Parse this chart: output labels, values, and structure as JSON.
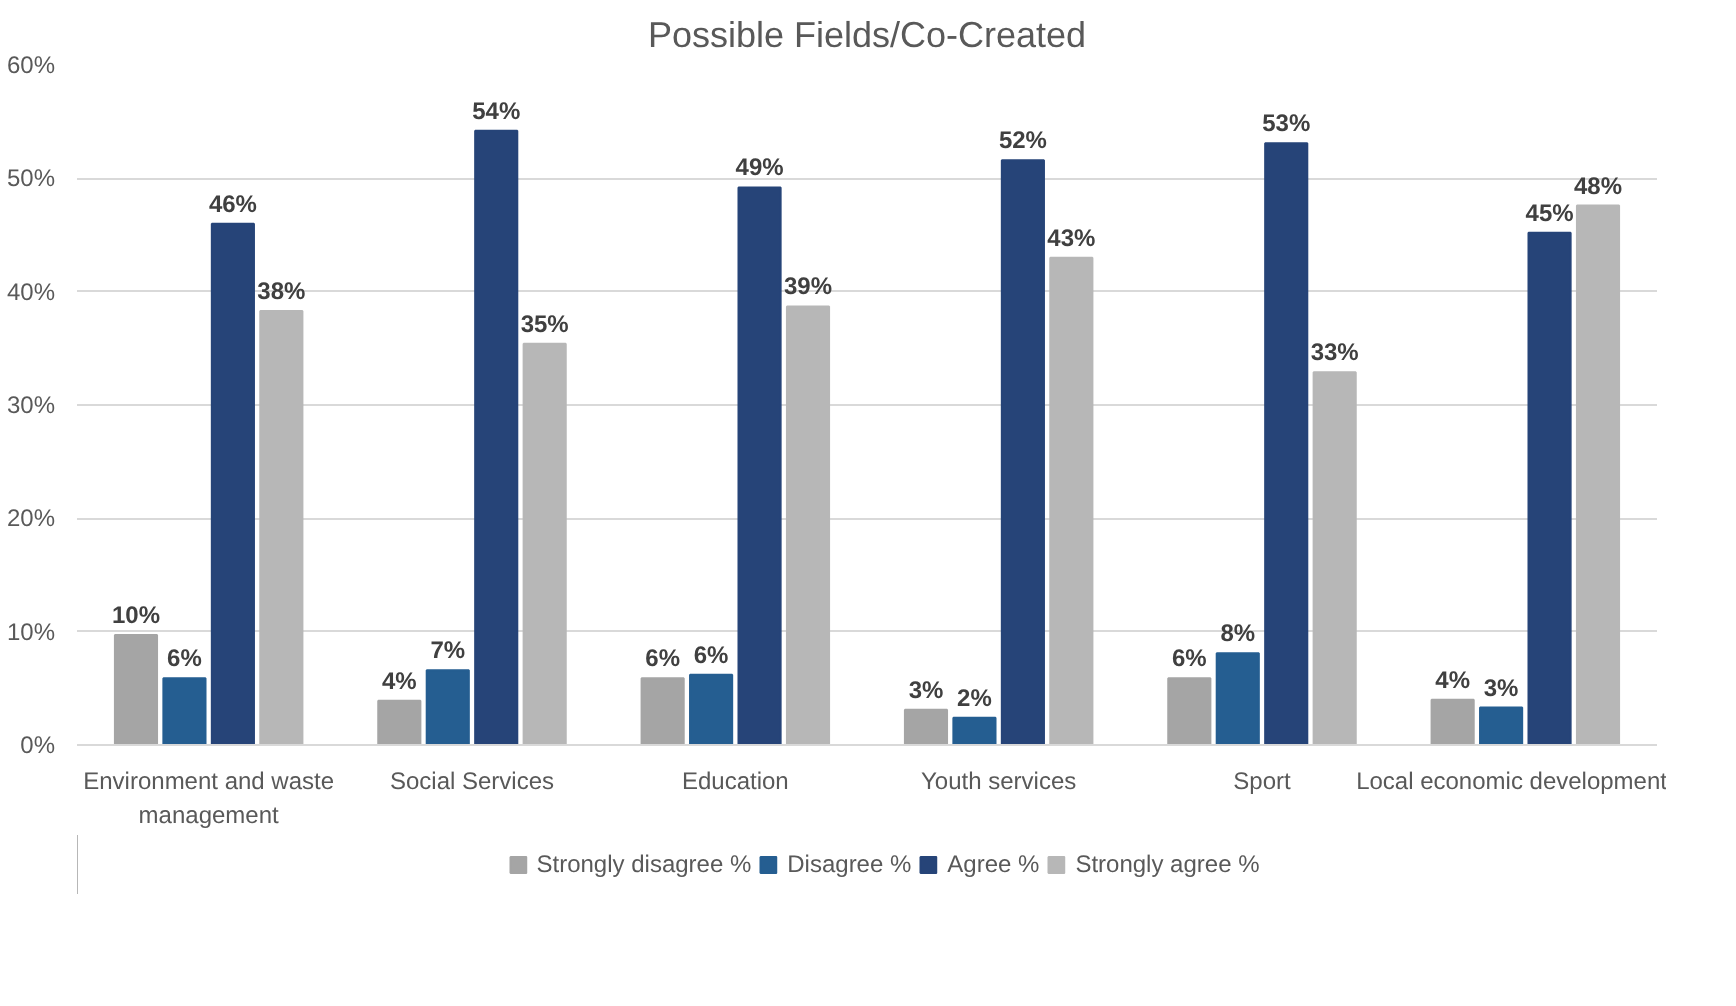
{
  "chart_data": {
    "type": "bar",
    "title": "Possible Fields/Co-Created",
    "categories": [
      "Environment and waste management",
      "Social Services",
      "Education",
      "Youth services",
      "Sport",
      "Local economic development"
    ],
    "series": [
      {
        "name": "Strongly disagree %",
        "color": "#a5a5a5",
        "values": [
          9.7,
          3.9,
          5.9,
          3.1,
          5.9,
          4.0
        ],
        "value_labels": [
          "10%",
          "4%",
          "6%",
          "3%",
          "6%",
          "4%"
        ]
      },
      {
        "name": "Disagree %",
        "color": "#255e91",
        "values": [
          5.9,
          6.6,
          6.2,
          2.4,
          8.1,
          3.3
        ],
        "value_labels": [
          "6%",
          "7%",
          "6%",
          "2%",
          "8%",
          "3%"
        ]
      },
      {
        "name": "Agree %",
        "color": "#264478",
        "values": [
          46,
          54.2,
          49.2,
          51.6,
          53.1,
          45.2
        ],
        "value_labels": [
          "46%",
          "54%",
          "49%",
          "52%",
          "53%",
          "45%"
        ]
      },
      {
        "name": "Strongly agree %",
        "color": "#b7b7b7",
        "values": [
          38.3,
          35.4,
          38.7,
          43.0,
          32.9,
          47.6
        ],
        "value_labels": [
          "38%",
          "35%",
          "39%",
          "43%",
          "33%",
          "48%"
        ]
      }
    ],
    "ylim": [
      0,
      60
    ],
    "yticks": [
      {
        "value": 0,
        "label": "0%"
      },
      {
        "value": 10,
        "label": "10%"
      },
      {
        "value": 20,
        "label": "20%"
      },
      {
        "value": 30,
        "label": "30%"
      },
      {
        "value": 40,
        "label": "40%"
      },
      {
        "value": 50,
        "label": "50%"
      },
      {
        "value": 60,
        "label": "60%"
      }
    ],
    "grid": "y",
    "legend": "bottom"
  }
}
